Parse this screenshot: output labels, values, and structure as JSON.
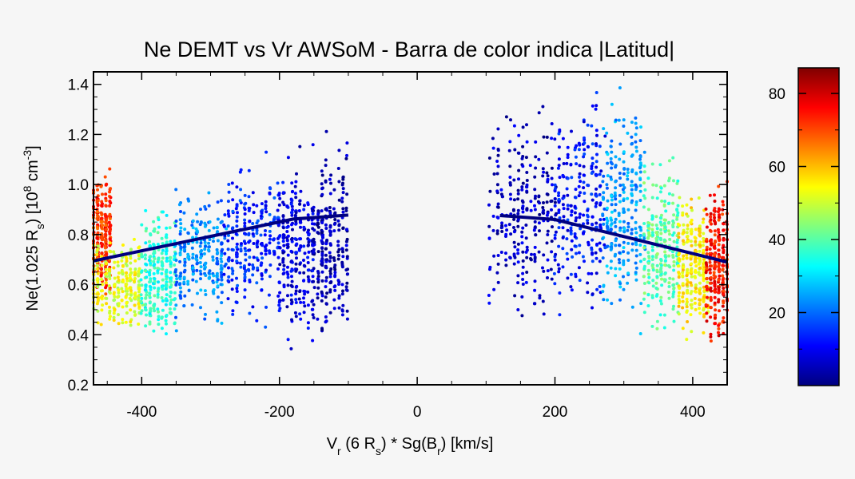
{
  "chart_data": {
    "type": "scatter",
    "title": "Ne DEMT vs Vr AWSoM - Barra de color indica |Latitud|",
    "xlabel": "V_r (6 R_s) * Sg(B_r) [km/s]",
    "ylabel": "Ne(1.025 R_s) [10^8 cm^-3]",
    "xlim": [
      -470,
      450
    ],
    "ylim": [
      0.2,
      1.45
    ],
    "xticks": [
      -400,
      -200,
      0,
      200,
      400
    ],
    "yticks": [
      0.2,
      0.4,
      0.6,
      0.8,
      1.0,
      1.2,
      1.4
    ],
    "color_scale": {
      "label": "|Latitud|",
      "range": [
        0,
        87
      ],
      "ticks": [
        20,
        40,
        60,
        80
      ],
      "colormap": "jet",
      "colors": [
        "#00007f",
        "#0000ff",
        "#007fff",
        "#00ffff",
        "#7fff7f",
        "#ffff00",
        "#ff7f00",
        "#ff0000",
        "#7f0000"
      ]
    },
    "fit_lines": [
      {
        "name": "",
        "color": "#000080",
        "x": [
          -470,
          -180,
          -100
        ],
        "y": [
          0.695,
          0.862,
          0.878
        ]
      },
      {
        "name": "",
        "color": "#000080",
        "x": [
          120,
          200,
          450
        ],
        "y": [
          0.876,
          0.86,
          0.69
        ]
      }
    ],
    "clusters": [
      {
        "xmin": -470,
        "xmax": -445,
        "ymin": 0.5,
        "ymax": 1.1,
        "lat": 72
      },
      {
        "xmin": -470,
        "xmax": -400,
        "ymin": 0.35,
        "ymax": 0.85,
        "lat": 52
      },
      {
        "xmin": -400,
        "xmax": -350,
        "ymin": 0.32,
        "ymax": 0.95,
        "lat": 36
      },
      {
        "xmin": -350,
        "xmax": -280,
        "ymin": 0.38,
        "ymax": 1.05,
        "lat": 22
      },
      {
        "xmin": -280,
        "xmax": -200,
        "ymin": 0.4,
        "ymax": 1.15,
        "lat": 14
      },
      {
        "xmin": -200,
        "xmax": -150,
        "ymin": 0.3,
        "ymax": 1.2,
        "lat": 8
      },
      {
        "xmin": -150,
        "xmax": -100,
        "ymin": 0.3,
        "ymax": 1.25,
        "lat": 4
      },
      {
        "xmin": 105,
        "xmax": 200,
        "ymin": 0.35,
        "ymax": 1.45,
        "lat": 6
      },
      {
        "xmin": 200,
        "xmax": 270,
        "ymin": 0.35,
        "ymax": 1.45,
        "lat": 12
      },
      {
        "xmin": 270,
        "xmax": 330,
        "ymin": 0.35,
        "ymax": 1.45,
        "lat": 24
      },
      {
        "xmin": 330,
        "xmax": 380,
        "ymin": 0.33,
        "ymax": 1.2,
        "lat": 40
      },
      {
        "xmin": 380,
        "xmax": 420,
        "ymin": 0.32,
        "ymax": 1.0,
        "lat": 55
      },
      {
        "xmin": 420,
        "xmax": 450,
        "ymin": 0.3,
        "ymax": 1.08,
        "lat": 75
      }
    ]
  }
}
